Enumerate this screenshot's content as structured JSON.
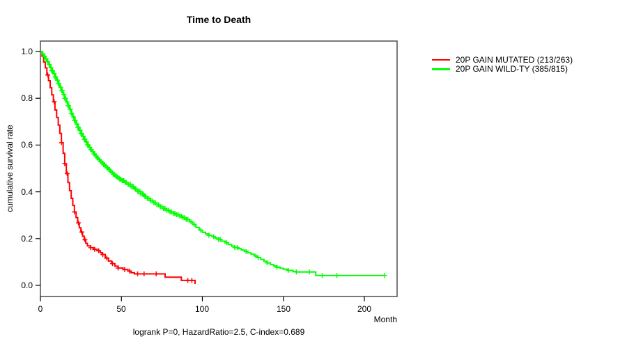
{
  "title": "Time to Death",
  "caption": "logrank P=0, HazardRatio=2.5, C-index=0.689",
  "axes": {
    "x_label": "Month",
    "y_label": "cumulative survival rate",
    "x_tick_labels": [
      "0",
      "50",
      "100",
      "150",
      "200"
    ],
    "y_tick_labels": [
      "0.0",
      "0.2",
      "0.4",
      "0.6",
      "0.8",
      "1.0"
    ]
  },
  "chart_data": {
    "type": "line",
    "subtype": "kaplan-meier-step-survival",
    "title": "Time to Death",
    "xlabel": "Month",
    "ylabel": "cumulative survival rate",
    "xlim": [
      0,
      220
    ],
    "ylim": [
      0,
      1.0
    ],
    "x_ticks": [
      0,
      50,
      100,
      150,
      200
    ],
    "y_ticks": [
      0.0,
      0.2,
      0.4,
      0.6,
      0.8,
      1.0
    ],
    "grid": false,
    "legend_position": "outside-right-top",
    "annotation": "logrank P=0, HazardRatio=2.5, C-index=0.689",
    "series": [
      {
        "name": "20P GAIN MUTATED (213/263)",
        "events": 213,
        "n": 263,
        "color": "#ff0000",
        "data_name": "survival-curve-20p-gain-mutated",
        "end_month": 95.5,
        "steps": [
          [
            0,
            1.0
          ],
          [
            1,
            0.98
          ],
          [
            2,
            0.955
          ],
          [
            3,
            0.93
          ],
          [
            4,
            0.9
          ],
          [
            5,
            0.875
          ],
          [
            6,
            0.845
          ],
          [
            7,
            0.815
          ],
          [
            8,
            0.785
          ],
          [
            9,
            0.75
          ],
          [
            10,
            0.718
          ],
          [
            11,
            0.685
          ],
          [
            12,
            0.65
          ],
          [
            13,
            0.61
          ],
          [
            14,
            0.565
          ],
          [
            15,
            0.52
          ],
          [
            16,
            0.478
          ],
          [
            17,
            0.44
          ],
          [
            18,
            0.405
          ],
          [
            19,
            0.372
          ],
          [
            20,
            0.342
          ],
          [
            21,
            0.314
          ],
          [
            22,
            0.29
          ],
          [
            23,
            0.267
          ],
          [
            24,
            0.246
          ],
          [
            25,
            0.228
          ],
          [
            26,
            0.21
          ],
          [
            27,
            0.195
          ],
          [
            28,
            0.18
          ],
          [
            29,
            0.169
          ],
          [
            31,
            0.161
          ],
          [
            33,
            0.154
          ],
          [
            35,
            0.148
          ],
          [
            37,
            0.14
          ],
          [
            38,
            0.132
          ],
          [
            40,
            0.117
          ],
          [
            42,
            0.104
          ],
          [
            44,
            0.093
          ],
          [
            46,
            0.082
          ],
          [
            48,
            0.074
          ],
          [
            51,
            0.068
          ],
          [
            54,
            0.061
          ],
          [
            56,
            0.054
          ],
          [
            58,
            0.049
          ],
          [
            77,
            0.035
          ],
          [
            87,
            0.021
          ],
          [
            95.5,
            0.006
          ]
        ],
        "censors": [
          4.5,
          8.5,
          13,
          15,
          16.5,
          21,
          23.5,
          25.5,
          27.5,
          31,
          33.5,
          36,
          38.5,
          41,
          44.5,
          48,
          52,
          55,
          60,
          64,
          71.5,
          91,
          93.5
        ]
      },
      {
        "name": "20P GAIN WILD-TY (385/815)",
        "events": 385,
        "n": 815,
        "color": "#00ff00",
        "data_name": "survival-curve-20p-gain-wildtype",
        "end_month": 212.5,
        "steps": [
          [
            0,
            1.0
          ],
          [
            1,
            0.99
          ],
          [
            2,
            0.98
          ],
          [
            3,
            0.968
          ],
          [
            4,
            0.956
          ],
          [
            5,
            0.944
          ],
          [
            6,
            0.931
          ],
          [
            7,
            0.918
          ],
          [
            8,
            0.905
          ],
          [
            9,
            0.891
          ],
          [
            10,
            0.877
          ],
          [
            11,
            0.862
          ],
          [
            12,
            0.847
          ],
          [
            13,
            0.832
          ],
          [
            14,
            0.816
          ],
          [
            15,
            0.8
          ],
          [
            16,
            0.784
          ],
          [
            17,
            0.768
          ],
          [
            18,
            0.752
          ],
          [
            19,
            0.736
          ],
          [
            20,
            0.72
          ],
          [
            21,
            0.705
          ],
          [
            22,
            0.69
          ],
          [
            23,
            0.676
          ],
          [
            24,
            0.663
          ],
          [
            25,
            0.65
          ],
          [
            26,
            0.637
          ],
          [
            27,
            0.625
          ],
          [
            28,
            0.613
          ],
          [
            29,
            0.601
          ],
          [
            30,
            0.59
          ],
          [
            31,
            0.58
          ],
          [
            32,
            0.571
          ],
          [
            33,
            0.562
          ],
          [
            34,
            0.553
          ],
          [
            35,
            0.545
          ],
          [
            36,
            0.537
          ],
          [
            37,
            0.53
          ],
          [
            38,
            0.523
          ],
          [
            39,
            0.516
          ],
          [
            40,
            0.51
          ],
          [
            41,
            0.503
          ],
          [
            42,
            0.496
          ],
          [
            43,
            0.489
          ],
          [
            44,
            0.482
          ],
          [
            45,
            0.475
          ],
          [
            46,
            0.469
          ],
          [
            47,
            0.464
          ],
          [
            48,
            0.459
          ],
          [
            49,
            0.454
          ],
          [
            50,
            0.448
          ],
          [
            52,
            0.44
          ],
          [
            54,
            0.432
          ],
          [
            56,
            0.422
          ],
          [
            58,
            0.412
          ],
          [
            60,
            0.402
          ],
          [
            62,
            0.391
          ],
          [
            64,
            0.38
          ],
          [
            66,
            0.371
          ],
          [
            68,
            0.362
          ],
          [
            70,
            0.353
          ],
          [
            72,
            0.344
          ],
          [
            74,
            0.336
          ],
          [
            76,
            0.328
          ],
          [
            78,
            0.321
          ],
          [
            80,
            0.314
          ],
          [
            82,
            0.308
          ],
          [
            84,
            0.302
          ],
          [
            86,
            0.296
          ],
          [
            88,
            0.29
          ],
          [
            90,
            0.282
          ],
          [
            92,
            0.272
          ],
          [
            94,
            0.26
          ],
          [
            96,
            0.248
          ],
          [
            98,
            0.236
          ],
          [
            100,
            0.227
          ],
          [
            102,
            0.22
          ],
          [
            104,
            0.214
          ],
          [
            106,
            0.208
          ],
          [
            108,
            0.202
          ],
          [
            110,
            0.196
          ],
          [
            112,
            0.189
          ],
          [
            114,
            0.182
          ],
          [
            116,
            0.175
          ],
          [
            118,
            0.168
          ],
          [
            120,
            0.162
          ],
          [
            122,
            0.157
          ],
          [
            124,
            0.151
          ],
          [
            126,
            0.145
          ],
          [
            128,
            0.139
          ],
          [
            130,
            0.133
          ],
          [
            132,
            0.126
          ],
          [
            134,
            0.119
          ],
          [
            136,
            0.111
          ],
          [
            138,
            0.103
          ],
          [
            140,
            0.096
          ],
          [
            142,
            0.089
          ],
          [
            144,
            0.083
          ],
          [
            146,
            0.077
          ],
          [
            148,
            0.073
          ],
          [
            150,
            0.069
          ],
          [
            153,
            0.064
          ],
          [
            156,
            0.059
          ],
          [
            158,
            0.057
          ],
          [
            170,
            0.042
          ]
        ],
        "censors": [
          1.5,
          2.5,
          3.5,
          4.5,
          5.5,
          6.5,
          7,
          7.5,
          8.5,
          9,
          9.5,
          10.5,
          11,
          11.5,
          12.5,
          13,
          13.5,
          14.5,
          15,
          15.5,
          16.5,
          17,
          17.5,
          18.5,
          19,
          19.5,
          20.5,
          21,
          21.5,
          22.5,
          23,
          23.5,
          24.5,
          25,
          25.5,
          26.5,
          27,
          27.5,
          28.5,
          29,
          29.5,
          30.5,
          31,
          31.5,
          32.5,
          33,
          33.5,
          34.5,
          35,
          35.5,
          36.5,
          37,
          37.5,
          38.5,
          39,
          39.5,
          40.5,
          41,
          41.5,
          42.5,
          43,
          43.5,
          44.5,
          45,
          45.5,
          46.5,
          47,
          47.5,
          48.5,
          49,
          49.5,
          50.5,
          51,
          51.5,
          52.5,
          53,
          54,
          54.5,
          55.5,
          56,
          57,
          57.5,
          58.5,
          59,
          60,
          60.5,
          61.5,
          62,
          63,
          63.5,
          64.5,
          65,
          66,
          67,
          68,
          69,
          70,
          71,
          72,
          73,
          74,
          75,
          76,
          77,
          78,
          79,
          80,
          81,
          82,
          83,
          84,
          85,
          86,
          87,
          88,
          89,
          90,
          91,
          93,
          95,
          99,
          104,
          107,
          110,
          111,
          115,
          120,
          121.5,
          127,
          133,
          134.5,
          140,
          146,
          153,
          158,
          166,
          174,
          183,
          212.5
        ]
      }
    ]
  }
}
